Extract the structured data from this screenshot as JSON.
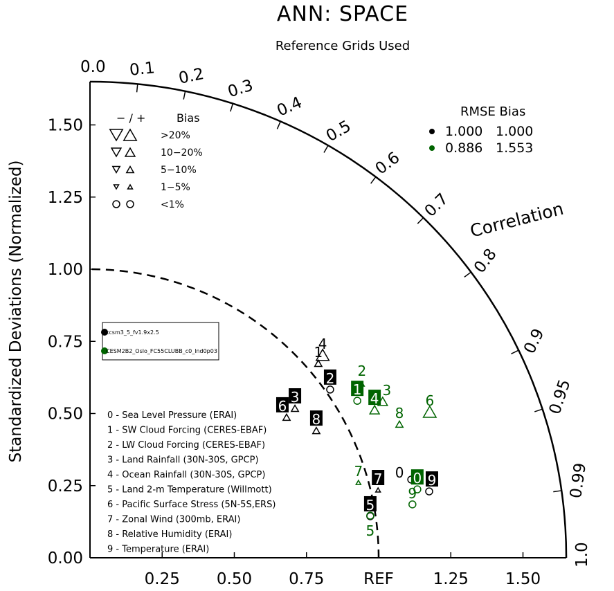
{
  "chart_data": {
    "type": "scatter",
    "subtype": "taylor-diagram",
    "title": "ANN: SPACE",
    "subtitle": "Reference Grids Used",
    "ylabel": "Standardized Deviations (Normalized)",
    "arc_label": "Correlation",
    "x_ticks": [
      "0.25",
      "0.50",
      "0.75",
      "REF",
      "1.25",
      "1.50"
    ],
    "x_tick_values": [
      0.25,
      0.5,
      0.75,
      1.0,
      1.25,
      1.5
    ],
    "y_ticks": [
      "0.00",
      "0.25",
      "0.50",
      "0.75",
      "1.00",
      "1.25",
      "1.50"
    ],
    "y_tick_values": [
      0,
      0.25,
      0.5,
      0.75,
      1.0,
      1.25,
      1.5
    ],
    "max_std": 1.65,
    "corr_ticks": [
      "0.0",
      "0.1",
      "0.2",
      "0.3",
      "0.4",
      "0.5",
      "0.6",
      "0.7",
      "0.8",
      "0.9",
      "0.95",
      "0.99",
      "1.0"
    ],
    "corr_tick_values": [
      0,
      0.1,
      0.2,
      0.3,
      0.4,
      0.5,
      0.6,
      0.7,
      0.8,
      0.9,
      0.95,
      0.99,
      1.0
    ],
    "bias_legend": {
      "header_minus_plus": "−  /  +",
      "header_bias": "Bias",
      "rows": [
        {
          "label": ">20%",
          "size": 4
        },
        {
          "label": "10−20%",
          "size": 3
        },
        {
          "label": "5−10%",
          "size": 2
        },
        {
          "label": "1−5%",
          "size": 1
        },
        {
          "label": "<1%",
          "size": 0
        }
      ]
    },
    "stats_legend": {
      "header": "RMSE  Bias",
      "rows": [
        {
          "color": "#000000",
          "rmse": "1.000",
          "bias": "1.000"
        },
        {
          "color": "#006400",
          "rmse": "0.886",
          "bias": "1.553"
        }
      ]
    },
    "cases": [
      {
        "name": "ccsm3_5_fv1.9x2.5",
        "color": "#000000"
      },
      {
        "name": "CESM2B2_Oslo_FC55CLUBB_c0_lnd0p03",
        "color": "#006400"
      }
    ],
    "variables": [
      "0 - Sea Level Pressure (ERAI)",
      "1 - SW Cloud Forcing (CERES-EBAF)",
      "2 - LW Cloud Forcing (CERES-EBAF)",
      "3 - Land Rainfall (30N-30S, GPCP)",
      "4 - Ocean Rainfall (30N-30S, GPCP)",
      "5 - Land 2-m Temperature (Willmott)",
      "6 - Pacific Surface Stress (5N-5S,ERS)",
      "7 - Zonal Wind (300mb, ERAI)",
      "8 - Relative Humidity (ERAI)",
      "9 - Temperature (ERAI)"
    ],
    "series": [
      {
        "name": "ccsm3_5_fv1.9x2.5",
        "color": "#000000",
        "points": [
          {
            "id": "0",
            "x": 1.113,
            "y": 0.271,
            "bias": "circle",
            "boxed": false
          },
          {
            "id": "1",
            "x": 0.791,
            "y": 0.674,
            "bias": "up",
            "size": 2,
            "boxed": false
          },
          {
            "id": "2",
            "x": 0.832,
            "y": 0.583,
            "bias": "circle",
            "boxed": true
          },
          {
            "id": "3",
            "x": 0.71,
            "y": 0.518,
            "bias": "up",
            "size": 2,
            "boxed": true
          },
          {
            "id": "4",
            "x": 0.806,
            "y": 0.703,
            "bias": "up",
            "size": 4,
            "boxed": false
          },
          {
            "id": "5",
            "x": 0.971,
            "y": 0.144,
            "bias": "circle",
            "boxed": true
          },
          {
            "id": "6",
            "x": 0.681,
            "y": 0.487,
            "bias": "up",
            "size": 2,
            "boxed": true
          },
          {
            "id": "7",
            "x": 0.998,
            "y": 0.235,
            "bias": "up",
            "size": 1,
            "boxed": true
          },
          {
            "id": "8",
            "x": 0.784,
            "y": 0.441,
            "bias": "up",
            "size": 2,
            "boxed": true
          },
          {
            "id": "9",
            "x": 1.175,
            "y": 0.23,
            "bias": "circle",
            "boxed": true
          }
        ]
      },
      {
        "name": "CESM2B2_Oslo_FC55CLUBB_c0_lnd0p03",
        "color": "#006400",
        "points": [
          {
            "id": "0",
            "x": 1.134,
            "y": 0.237,
            "bias": "circle",
            "boxed": true
          },
          {
            "id": "1",
            "x": 0.926,
            "y": 0.544,
            "bias": "circle",
            "boxed": true
          },
          {
            "id": "2",
            "x": 0.942,
            "y": 0.602,
            "bias": "up",
            "size": 1,
            "boxed": false
          },
          {
            "id": "3",
            "x": 1.014,
            "y": 0.542,
            "bias": "up",
            "size": 3,
            "boxed": false
          },
          {
            "id": "4",
            "x": 0.986,
            "y": 0.513,
            "bias": "up",
            "size": 3,
            "boxed": true
          },
          {
            "id": "5",
            "x": 0.971,
            "y": 0.146,
            "bias": "circle",
            "boxed": false
          },
          {
            "id": "6",
            "x": 1.177,
            "y": 0.506,
            "bias": "up",
            "size": 4,
            "boxed": false
          },
          {
            "id": "7",
            "x": 0.93,
            "y": 0.261,
            "bias": "up",
            "size": 1,
            "boxed": false
          },
          {
            "id": "8",
            "x": 1.072,
            "y": 0.463,
            "bias": "up",
            "size": 2,
            "boxed": false
          },
          {
            "id": "9",
            "x": 1.117,
            "y": 0.185,
            "bias": "circle",
            "boxed": false
          }
        ]
      }
    ]
  }
}
